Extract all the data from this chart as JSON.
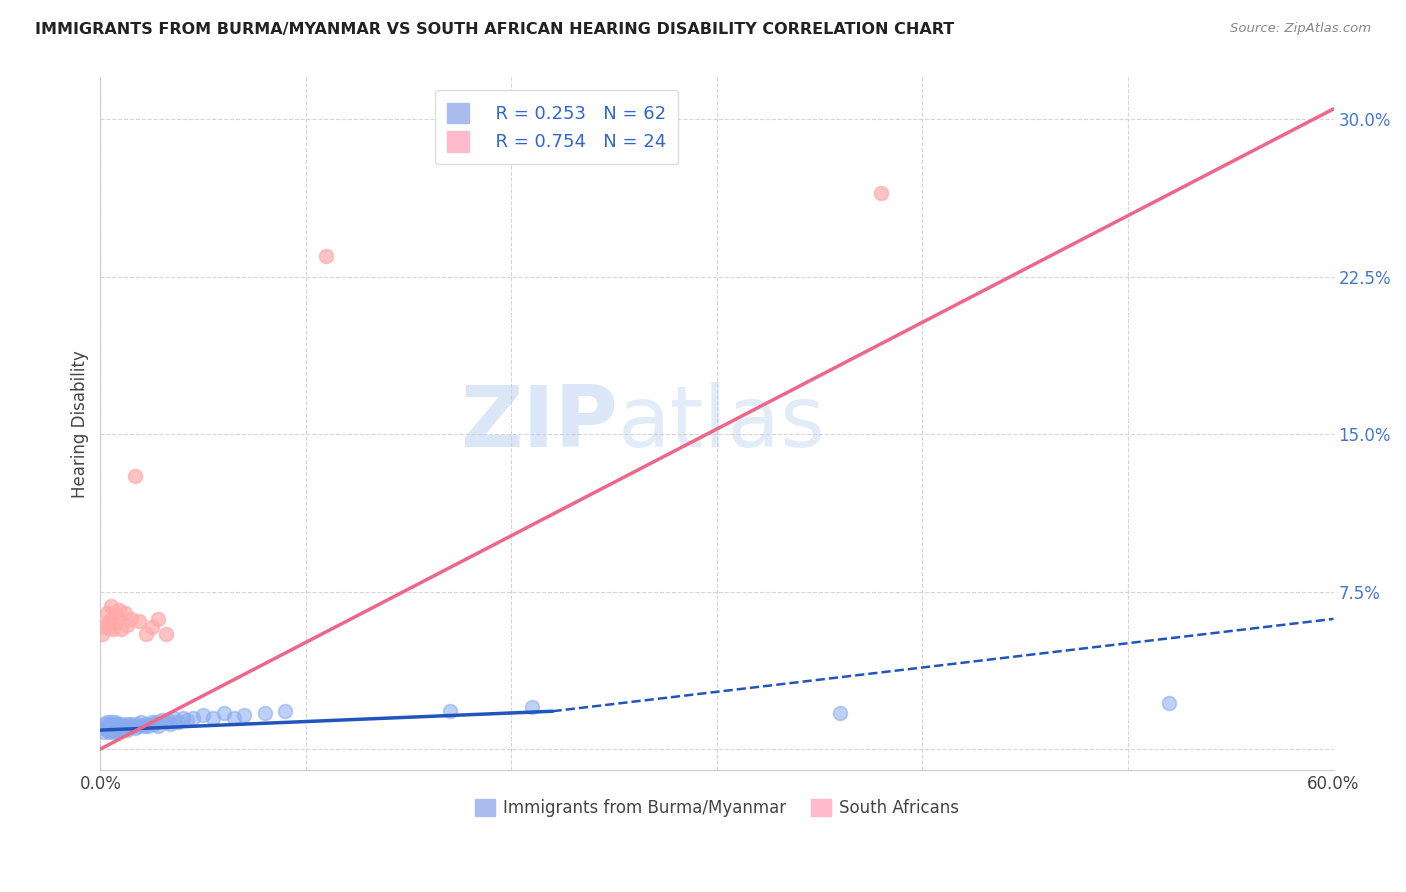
{
  "title": "IMMIGRANTS FROM BURMA/MYANMAR VS SOUTH AFRICAN HEARING DISABILITY CORRELATION CHART",
  "source": "Source: ZipAtlas.com",
  "ylabel": "Hearing Disability",
  "xlim": [
    0.0,
    0.6
  ],
  "ylim": [
    -0.01,
    0.32
  ],
  "xticks": [
    0.0,
    0.1,
    0.2,
    0.3,
    0.4,
    0.5,
    0.6
  ],
  "yticks": [
    0.0,
    0.075,
    0.15,
    0.225,
    0.3
  ],
  "background_color": "#ffffff",
  "grid_color": "#cccccc",
  "watermark_zip": "ZIP",
  "watermark_atlas": "atlas",
  "legend_r1": "R = 0.253",
  "legend_n1": "N = 62",
  "legend_r2": "R = 0.754",
  "legend_n2": "N = 24",
  "blue_color": "#88aaee",
  "pink_color": "#ffaaaa",
  "blue_line_color": "#2255bb",
  "pink_line_color": "#ee6688",
  "blue_scatter_x": [
    0.001,
    0.002,
    0.002,
    0.003,
    0.003,
    0.003,
    0.004,
    0.004,
    0.004,
    0.005,
    0.005,
    0.005,
    0.006,
    0.006,
    0.007,
    0.007,
    0.007,
    0.008,
    0.008,
    0.008,
    0.009,
    0.009,
    0.01,
    0.01,
    0.011,
    0.012,
    0.013,
    0.013,
    0.014,
    0.015,
    0.016,
    0.017,
    0.018,
    0.019,
    0.02,
    0.021,
    0.022,
    0.023,
    0.025,
    0.026,
    0.027,
    0.028,
    0.03,
    0.032,
    0.033,
    0.034,
    0.036,
    0.038,
    0.04,
    0.042,
    0.045,
    0.05,
    0.055,
    0.06,
    0.065,
    0.07,
    0.08,
    0.09,
    0.17,
    0.21,
    0.36,
    0.52
  ],
  "blue_scatter_y": [
    0.01,
    0.008,
    0.012,
    0.009,
    0.011,
    0.013,
    0.008,
    0.01,
    0.012,
    0.009,
    0.011,
    0.013,
    0.008,
    0.011,
    0.009,
    0.011,
    0.013,
    0.008,
    0.01,
    0.012,
    0.009,
    0.011,
    0.01,
    0.012,
    0.011,
    0.01,
    0.009,
    0.012,
    0.011,
    0.012,
    0.011,
    0.01,
    0.012,
    0.011,
    0.013,
    0.011,
    0.012,
    0.011,
    0.013,
    0.012,
    0.013,
    0.011,
    0.014,
    0.013,
    0.014,
    0.012,
    0.015,
    0.013,
    0.015,
    0.014,
    0.015,
    0.016,
    0.015,
    0.017,
    0.015,
    0.016,
    0.017,
    0.018,
    0.018,
    0.02,
    0.017,
    0.022
  ],
  "pink_scatter_x": [
    0.001,
    0.002,
    0.003,
    0.003,
    0.004,
    0.005,
    0.005,
    0.006,
    0.007,
    0.007,
    0.008,
    0.009,
    0.01,
    0.012,
    0.013,
    0.015,
    0.017,
    0.019,
    0.022,
    0.025,
    0.028,
    0.032,
    0.11,
    0.38
  ],
  "pink_scatter_y": [
    0.055,
    0.058,
    0.06,
    0.065,
    0.058,
    0.062,
    0.068,
    0.057,
    0.06,
    0.065,
    0.063,
    0.066,
    0.057,
    0.065,
    0.059,
    0.062,
    0.13,
    0.061,
    0.055,
    0.058,
    0.062,
    0.055,
    0.235,
    0.265
  ],
  "blue_trend_x0": 0.0,
  "blue_trend_x1": 0.22,
  "blue_trend_y0": 0.009,
  "blue_trend_y1": 0.018,
  "dash_trend_x0": 0.22,
  "dash_trend_x1": 0.6,
  "dash_trend_y0": 0.018,
  "dash_trend_y1": 0.062,
  "pink_trend_x0": 0.0,
  "pink_trend_x1": 0.6,
  "pink_trend_y0": 0.0,
  "pink_trend_y1": 0.305
}
